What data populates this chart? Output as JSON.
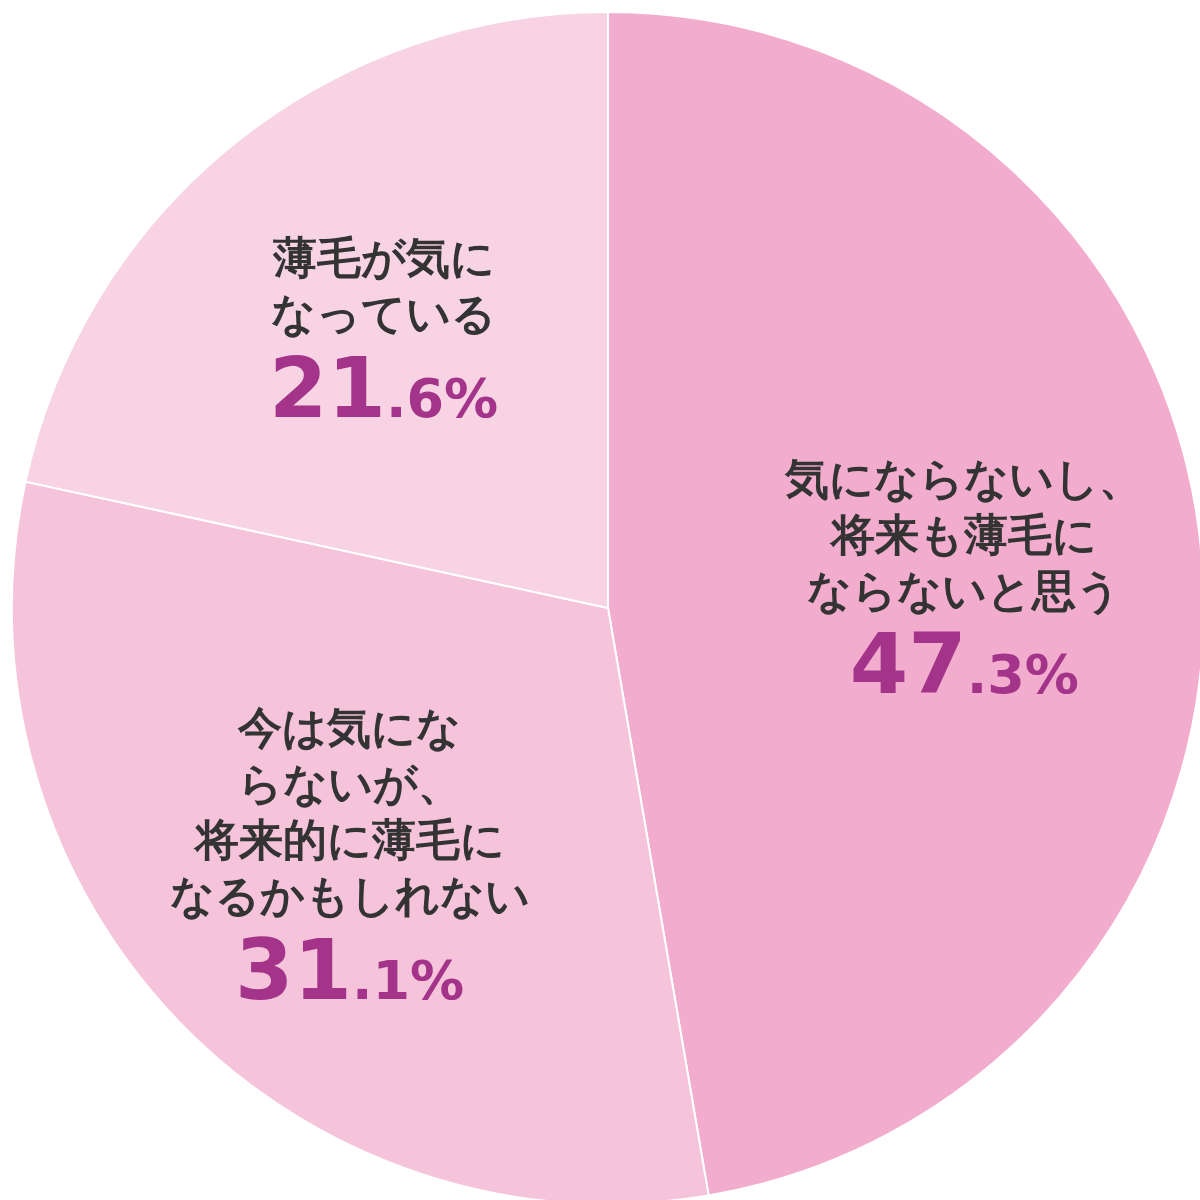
{
  "chart_data": {
    "type": "pie",
    "categories": [
      "気にならないし、将来も薄毛にならないと思う",
      "今は気にならないが、将来的に薄毛になるかもしれない",
      "薄毛が気になっている"
    ],
    "values": [
      47.3,
      31.1,
      21.6
    ],
    "colors": [
      "#f2accd",
      "#f5c4da",
      "#f7d3e3"
    ],
    "value_labels": [
      "47.3%",
      "31.1%",
      "21.6%"
    ]
  }
}
